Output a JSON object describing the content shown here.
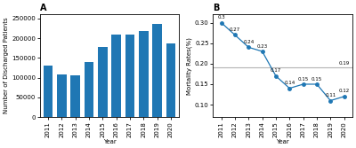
{
  "chart_data": [
    {
      "type": "bar",
      "title": "A",
      "categories": [
        "2011",
        "2012",
        "2013",
        "2014",
        "2015",
        "2016",
        "2017",
        "2018",
        "2019",
        "2020"
      ],
      "values": [
        130000,
        108000,
        106000,
        140000,
        178000,
        208000,
        208000,
        218000,
        235000,
        186000
      ],
      "x_label": "Year",
      "y_label": "Number of Discharged Patients",
      "ylim": [
        0,
        260000
      ],
      "yticks": [
        0,
        50000,
        100000,
        150000,
        200000,
        250000
      ]
    },
    {
      "type": "line",
      "title": "B",
      "categories": [
        "2011",
        "2012",
        "2013",
        "2014",
        "2015",
        "2016",
        "2017",
        "2018",
        "2019",
        "2020"
      ],
      "values": [
        0.3,
        0.27,
        0.24,
        0.23,
        0.17,
        0.14,
        0.15,
        0.15,
        0.11,
        0.12
      ],
      "marker": "o",
      "data_labels": true,
      "x_label": "Year",
      "y_label": "Mortality Rates(%)",
      "ylim": [
        0.07,
        0.32
      ],
      "yticks": [
        {
          "value": 0.1,
          "label": "0.10"
        },
        0.15,
        {
          "value": 0.2,
          "label": "0.20"
        },
        0.25,
        {
          "value": 0.3,
          "label": "0.30"
        }
      ],
      "reference_line": {
        "value": 0.19,
        "label": "0.19"
      }
    }
  ]
}
